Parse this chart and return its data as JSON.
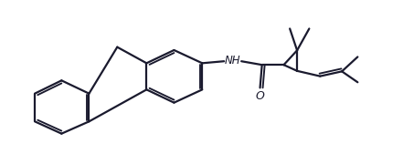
{
  "background": "#ffffff",
  "line_color": "#1a1a2e",
  "line_width": 1.6,
  "figsize": [
    4.41,
    1.8
  ],
  "dpi": 100
}
